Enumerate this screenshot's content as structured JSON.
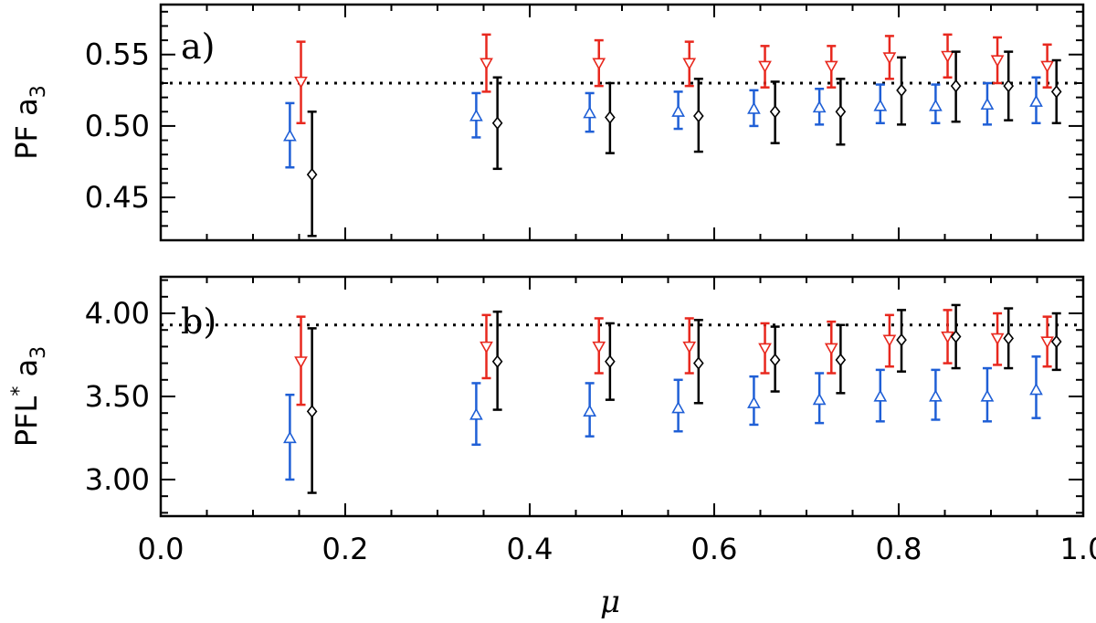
{
  "chart_data": [
    {
      "type": "scatter",
      "panel_label": "a)",
      "ylabel_main": "PF a",
      "ylabel_sub": "3",
      "xlabel": "",
      "xlim": [
        0.0,
        1.0
      ],
      "ylim": [
        0.42,
        0.585
      ],
      "yticks": [
        0.45,
        0.5,
        0.55
      ],
      "ytick_labels": [
        "0.45",
        "0.50",
        "0.55"
      ],
      "reference_line": 0.53,
      "series": [
        {
          "name": "red (inverted triangles)",
          "color": "#e8281e",
          "marker": "triangle-down",
          "x": [
            0.152,
            0.353,
            0.475,
            0.573,
            0.655,
            0.727,
            0.79,
            0.853,
            0.907,
            0.961
          ],
          "y": [
            0.531,
            0.544,
            0.544,
            0.544,
            0.542,
            0.542,
            0.548,
            0.549,
            0.546,
            0.542
          ],
          "yerr_low": [
            0.502,
            0.524,
            0.528,
            0.528,
            0.527,
            0.527,
            0.533,
            0.534,
            0.53,
            0.527
          ],
          "yerr_high": [
            0.559,
            0.564,
            0.56,
            0.559,
            0.556,
            0.556,
            0.563,
            0.564,
            0.562,
            0.557
          ]
        },
        {
          "name": "blue (triangles)",
          "color": "#1f5fd6",
          "marker": "triangle-up",
          "x": [
            0.14,
            0.342,
            0.465,
            0.561,
            0.643,
            0.714,
            0.78,
            0.84,
            0.896,
            0.949
          ],
          "y": [
            0.493,
            0.507,
            0.509,
            0.51,
            0.512,
            0.513,
            0.514,
            0.514,
            0.515,
            0.517
          ],
          "yerr_low": [
            0.471,
            0.492,
            0.496,
            0.498,
            0.5,
            0.501,
            0.502,
            0.502,
            0.501,
            0.502
          ],
          "yerr_high": [
            0.516,
            0.523,
            0.523,
            0.524,
            0.525,
            0.526,
            0.529,
            0.529,
            0.53,
            0.534
          ]
        },
        {
          "name": "black (diamonds)",
          "color": "#000000",
          "marker": "diamond",
          "x": [
            0.164,
            0.365,
            0.487,
            0.583,
            0.666,
            0.737,
            0.803,
            0.862,
            0.919,
            0.971
          ],
          "y": [
            0.466,
            0.502,
            0.506,
            0.507,
            0.51,
            0.51,
            0.525,
            0.528,
            0.528,
            0.524
          ],
          "yerr_low": [
            0.423,
            0.47,
            0.481,
            0.482,
            0.488,
            0.487,
            0.501,
            0.503,
            0.504,
            0.502
          ],
          "yerr_high": [
            0.51,
            0.534,
            0.53,
            0.533,
            0.531,
            0.533,
            0.548,
            0.552,
            0.552,
            0.546
          ]
        }
      ]
    },
    {
      "type": "scatter",
      "panel_label": "b)",
      "ylabel_main": "PFL",
      "ylabel_star": "*",
      "ylabel_tail": " a",
      "ylabel_sub": "3",
      "xlabel": "μ",
      "xlim": [
        0.0,
        1.0
      ],
      "ylim": [
        2.78,
        4.22
      ],
      "yticks": [
        3.0,
        3.5,
        4.0
      ],
      "ytick_labels": [
        "3.00",
        "3.50",
        "4.00"
      ],
      "xticks": [
        0.0,
        0.2,
        0.4,
        0.6,
        0.8,
        1.0
      ],
      "xtick_labels": [
        "0.0",
        "0.2",
        "0.4",
        "0.6",
        "0.8",
        "1.0"
      ],
      "reference_line": 3.93,
      "series": [
        {
          "name": "red (inverted triangles)",
          "color": "#e8281e",
          "marker": "triangle-down",
          "x": [
            0.152,
            0.353,
            0.475,
            0.573,
            0.655,
            0.727,
            0.79,
            0.853,
            0.907,
            0.961
          ],
          "y": [
            3.71,
            3.8,
            3.8,
            3.8,
            3.79,
            3.79,
            3.84,
            3.86,
            3.85,
            3.83
          ],
          "yerr_low": [
            3.45,
            3.61,
            3.64,
            3.64,
            3.64,
            3.64,
            3.68,
            3.7,
            3.69,
            3.68
          ],
          "yerr_high": [
            3.98,
            3.99,
            3.97,
            3.97,
            3.94,
            3.95,
            3.99,
            4.02,
            4.0,
            3.98
          ]
        },
        {
          "name": "blue (triangles)",
          "color": "#1f5fd6",
          "marker": "triangle-up",
          "x": [
            0.14,
            0.342,
            0.465,
            0.561,
            0.643,
            0.714,
            0.78,
            0.84,
            0.896,
            0.949
          ],
          "y": [
            3.25,
            3.39,
            3.41,
            3.43,
            3.46,
            3.48,
            3.5,
            3.5,
            3.5,
            3.54
          ],
          "yerr_low": [
            3.0,
            3.21,
            3.26,
            3.29,
            3.33,
            3.34,
            3.35,
            3.36,
            3.35,
            3.37
          ],
          "yerr_high": [
            3.51,
            3.58,
            3.58,
            3.6,
            3.62,
            3.64,
            3.66,
            3.66,
            3.67,
            3.74
          ]
        },
        {
          "name": "black (diamonds)",
          "color": "#000000",
          "marker": "diamond",
          "x": [
            0.164,
            0.365,
            0.487,
            0.583,
            0.666,
            0.737,
            0.803,
            0.862,
            0.919,
            0.971
          ],
          "y": [
            3.41,
            3.71,
            3.71,
            3.7,
            3.72,
            3.72,
            3.84,
            3.86,
            3.85,
            3.83
          ],
          "yerr_low": [
            2.92,
            3.42,
            3.48,
            3.46,
            3.53,
            3.52,
            3.65,
            3.67,
            3.67,
            3.66
          ],
          "yerr_high": [
            3.91,
            4.01,
            3.94,
            3.96,
            3.92,
            3.93,
            4.02,
            4.05,
            4.03,
            4.0
          ]
        }
      ]
    }
  ]
}
